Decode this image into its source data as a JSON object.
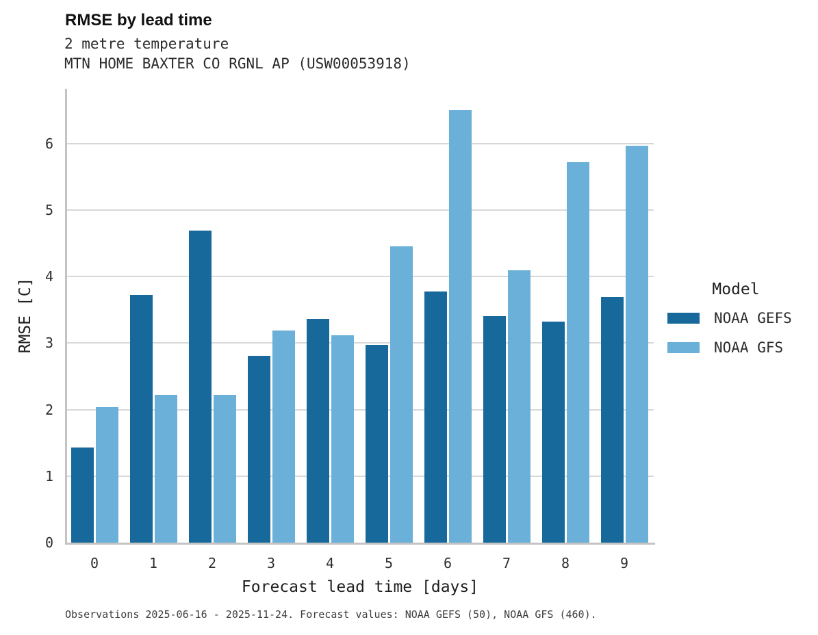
{
  "header": {
    "title": "RMSE by lead time",
    "subtitle1": "2 metre temperature",
    "subtitle2": "MTN HOME BAXTER CO RGNL AP (USW00053918)"
  },
  "chart_data": {
    "type": "bar",
    "title": "RMSE by lead time",
    "subtitle": "2 metre temperature — MTN HOME BAXTER CO RGNL AP (USW00053918)",
    "categories": [
      "0",
      "1",
      "2",
      "3",
      "4",
      "5",
      "6",
      "7",
      "8",
      "9"
    ],
    "series": [
      {
        "name": "NOAA GEFS",
        "color": "#17699c",
        "values": [
          1.43,
          3.72,
          4.69,
          2.81,
          3.36,
          2.97,
          3.78,
          3.4,
          3.32,
          3.69
        ]
      },
      {
        "name": "NOAA GFS",
        "color": "#6ab0d8",
        "values": [
          2.04,
          2.22,
          2.22,
          3.19,
          3.12,
          4.45,
          6.5,
          4.09,
          5.72,
          5.97
        ]
      }
    ],
    "xlabel": "Forecast lead time [days]",
    "ylabel": "RMSE [C]",
    "ylim": [
      0,
      6.82
    ],
    "yticks": [
      0,
      1,
      2,
      3,
      4,
      5,
      6
    ],
    "grid": "horizontal",
    "legend": {
      "title": "Model",
      "position": "right"
    },
    "colors": {
      "grid": "#d8d8d8",
      "axis": "#c3c3c3",
      "background": "#ffffff"
    }
  },
  "caption": "Observations 2025-06-16 - 2025-11-24. Forecast values: NOAA GEFS (50), NOAA GFS (460)."
}
